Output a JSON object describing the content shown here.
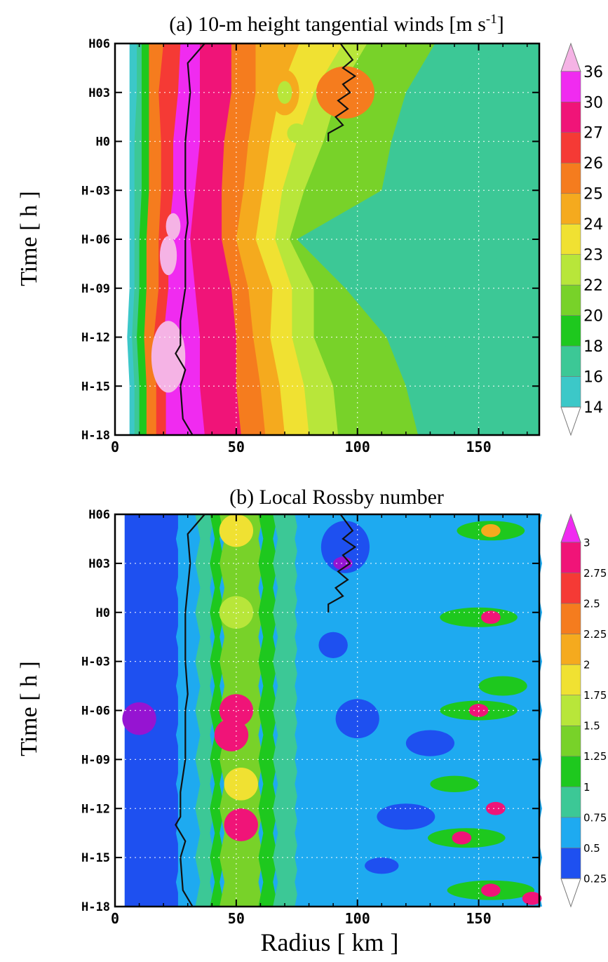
{
  "xlabel": "Radius [ km ]",
  "ylabel": "Time [ h ]",
  "chart_data": [
    {
      "type": "heatmap",
      "title": "(a) 10-m height tangential winds [m s",
      "title_superscript": "-1",
      "title_suffix": "]",
      "xlabel": "",
      "ylabel": "Time [ h ]",
      "xlim": [
        0,
        175
      ],
      "x_ticks": [
        "0",
        "50",
        "100",
        "150"
      ],
      "x_tick_values": [
        0,
        50,
        100,
        150
      ],
      "y_ticks": [
        "H06",
        "H03",
        "H0",
        "H-03",
        "H-06",
        "H-09",
        "H-12",
        "H-15",
        "H-18"
      ],
      "y_tick_values": [
        6,
        3,
        0,
        -3,
        -6,
        -9,
        -12,
        -15,
        -18
      ],
      "ylim": [
        -18,
        6
      ],
      "grid": true,
      "colorbar": {
        "levels": [
          "36",
          "30",
          "27",
          "26",
          "25",
          "24",
          "23",
          "22",
          "20",
          "18",
          "16",
          "14"
        ],
        "colors": [
          "#f5b3e5",
          "#f02bf0",
          "#f01478",
          "#f53a35",
          "#f57c1e",
          "#f5aa1e",
          "#f0e132",
          "#b8e63a",
          "#78d229",
          "#1ec81e",
          "#3cc896",
          "#3cc8c8",
          "#1eaaf0"
        ],
        "extend": "both"
      },
      "time_hours": [
        6,
        3,
        0,
        -3,
        -6,
        -9,
        -12,
        -15,
        -18
      ],
      "contour_edges_km": [
        {
          "time": 6,
          "edges": [
            6,
            9,
            11,
            14,
            20,
            27,
            35,
            48,
            58,
            76,
            94,
            104,
            132,
            160,
            168
          ]
        },
        {
          "time": 3,
          "edges": [
            6,
            9,
            11,
            14,
            18,
            26,
            35,
            48,
            58,
            68,
            82,
            92,
            120,
            140,
            162
          ]
        },
        {
          "time": 0,
          "edges": [
            6,
            8,
            11,
            14,
            19,
            24,
            35,
            45,
            55,
            64,
            75,
            86,
            114,
            134,
            162
          ]
        },
        {
          "time": -3,
          "edges": [
            6,
            8,
            11,
            14,
            19,
            24,
            33,
            44,
            53,
            61,
            69,
            78,
            110,
            138,
            160
          ]
        },
        {
          "time": -6,
          "edges": [
            6,
            8,
            10,
            13,
            18,
            22,
            31,
            44,
            50,
            58,
            66,
            72,
            75,
            124,
            158
          ]
        },
        {
          "time": -9,
          "edges": [
            6,
            8,
            10,
            13,
            18,
            22,
            33,
            48,
            55,
            65,
            73,
            82,
            95,
            128,
            156
          ]
        },
        {
          "time": -12,
          "edges": [
            5,
            7,
            9,
            12,
            16,
            20,
            35,
            50,
            57,
            64,
            73,
            82,
            112,
            136,
            152
          ]
        },
        {
          "time": -15,
          "edges": [
            6,
            8,
            10,
            13,
            17,
            21,
            35,
            50,
            60,
            68,
            78,
            90,
            120,
            138,
            150
          ]
        },
        {
          "time": -18,
          "edges": [
            6,
            8,
            10,
            13,
            17,
            21,
            37,
            52,
            62,
            70,
            80,
            92,
            125,
            138,
            150
          ]
        }
      ],
      "rmw_line_km": [
        {
          "time": 6,
          "r": 37
        },
        {
          "time": 4.8,
          "r": 30
        },
        {
          "time": 3,
          "r": 31
        },
        {
          "time": 0,
          "r": 29
        },
        {
          "time": -3,
          "r": 29
        },
        {
          "time": -5,
          "r": 30
        },
        {
          "time": -6,
          "r": 29
        },
        {
          "time": -9,
          "r": 29
        },
        {
          "time": -11,
          "r": 27
        },
        {
          "time": -12.5,
          "r": 27
        },
        {
          "time": -13,
          "r": 25
        },
        {
          "time": -14,
          "r": 29
        },
        {
          "time": -15,
          "r": 27
        },
        {
          "time": -17,
          "r": 28
        },
        {
          "time": -18,
          "r": 32
        }
      ],
      "outer_line_km": [
        {
          "time": 6,
          "r": 93
        },
        {
          "time": 5,
          "r": 98
        },
        {
          "time": 4.5,
          "r": 94
        },
        {
          "time": 4,
          "r": 99
        },
        {
          "time": 3.5,
          "r": 94
        },
        {
          "time": 3,
          "r": 97
        },
        {
          "time": 2.5,
          "r": 92
        },
        {
          "time": 2,
          "r": 96
        },
        {
          "time": 1.5,
          "r": 91
        },
        {
          "time": 1,
          "r": 94
        },
        {
          "time": 0.5,
          "r": 88
        },
        {
          "time": 0,
          "r": 88
        }
      ]
    },
    {
      "type": "heatmap",
      "title": "(b) Local Rossby number",
      "xlabel": "Radius [ km ]",
      "ylabel": "Time [ h ]",
      "xlim": [
        0,
        175
      ],
      "x_ticks": [
        "0",
        "50",
        "100",
        "150"
      ],
      "x_tick_values": [
        0,
        50,
        100,
        150
      ],
      "y_ticks": [
        "H06",
        "H03",
        "H0",
        "H-03",
        "H-06",
        "H-09",
        "H-12",
        "H-15",
        "H-18"
      ],
      "y_tick_values": [
        6,
        3,
        0,
        -3,
        -6,
        -9,
        -12,
        -15,
        -18
      ],
      "ylim": [
        -18,
        6
      ],
      "grid": true,
      "colorbar": {
        "levels": [
          "3",
          "2.75",
          "2.5",
          "2.25",
          "2",
          "1.75",
          "1.5",
          "1.25",
          "1",
          "0.75",
          "0.5",
          "0.25"
        ],
        "colors": [
          "#f02bf0",
          "#f01478",
          "#f53a35",
          "#f57c1e",
          "#f5aa1e",
          "#f0e132",
          "#b8e63a",
          "#78d229",
          "#1ec81e",
          "#3cc896",
          "#1eaaf0",
          "#1e50f0",
          "#9614d2"
        ],
        "extend": "both"
      },
      "bands_km": [
        {
          "from": 4,
          "to": 26,
          "level": "0.5"
        },
        {
          "from": 26,
          "to": 34,
          "level": "0.75"
        },
        {
          "from": 34,
          "to": 40,
          "level": "1"
        },
        {
          "from": 40,
          "to": 44,
          "level": "1.25"
        },
        {
          "from": 44,
          "to": 60,
          "level": "1.5"
        },
        {
          "from": 60,
          "to": 66,
          "level": "1.25"
        },
        {
          "from": 66,
          "to": 75,
          "level": "1"
        },
        {
          "from": 75,
          "to": 175,
          "level": "0.75"
        }
      ],
      "features": [
        {
          "r": 50,
          "time": 5,
          "level": "2"
        },
        {
          "r": 50,
          "time": -6,
          "level": "3"
        },
        {
          "r": 48,
          "time": -7.5,
          "level": "3"
        },
        {
          "r": 52,
          "time": -13,
          "level": "3"
        },
        {
          "r": 50,
          "time": 0,
          "level": "1.75"
        },
        {
          "r": 52,
          "time": -10.5,
          "level": "2"
        },
        {
          "r": 94,
          "time": 3,
          "level": "0.25"
        },
        {
          "r": 10,
          "time": -6.5,
          "level": "0.25"
        },
        {
          "r": 155,
          "time": -0.3,
          "level": "3"
        },
        {
          "r": 150,
          "time": -6,
          "level": "3"
        },
        {
          "r": 155,
          "time": 5,
          "level": "2.25"
        },
        {
          "r": 143,
          "time": -13.8,
          "level": "3"
        },
        {
          "r": 157,
          "time": -12,
          "level": "3"
        },
        {
          "r": 155,
          "time": -17,
          "level": "3"
        },
        {
          "r": 172,
          "time": -17.5,
          "level": "3"
        }
      ],
      "rmw_line_km": [
        {
          "time": 6,
          "r": 37
        },
        {
          "time": 4.8,
          "r": 30
        },
        {
          "time": 3,
          "r": 31
        },
        {
          "time": 0,
          "r": 29
        },
        {
          "time": -3,
          "r": 29
        },
        {
          "time": -5,
          "r": 30
        },
        {
          "time": -6,
          "r": 29
        },
        {
          "time": -9,
          "r": 29
        },
        {
          "time": -11,
          "r": 27
        },
        {
          "time": -12.5,
          "r": 27
        },
        {
          "time": -13,
          "r": 25
        },
        {
          "time": -14,
          "r": 29
        },
        {
          "time": -15,
          "r": 27
        },
        {
          "time": -17,
          "r": 28
        },
        {
          "time": -18,
          "r": 32
        }
      ],
      "outer_line_km": [
        {
          "time": 6,
          "r": 93
        },
        {
          "time": 5,
          "r": 98
        },
        {
          "time": 4.5,
          "r": 94
        },
        {
          "time": 4,
          "r": 99
        },
        {
          "time": 3.5,
          "r": 94
        },
        {
          "time": 3,
          "r": 97
        },
        {
          "time": 2.5,
          "r": 92
        },
        {
          "time": 2,
          "r": 96
        },
        {
          "time": 1.5,
          "r": 91
        },
        {
          "time": 1,
          "r": 94
        },
        {
          "time": 0.5,
          "r": 88
        },
        {
          "time": 0,
          "r": 88
        }
      ]
    }
  ]
}
